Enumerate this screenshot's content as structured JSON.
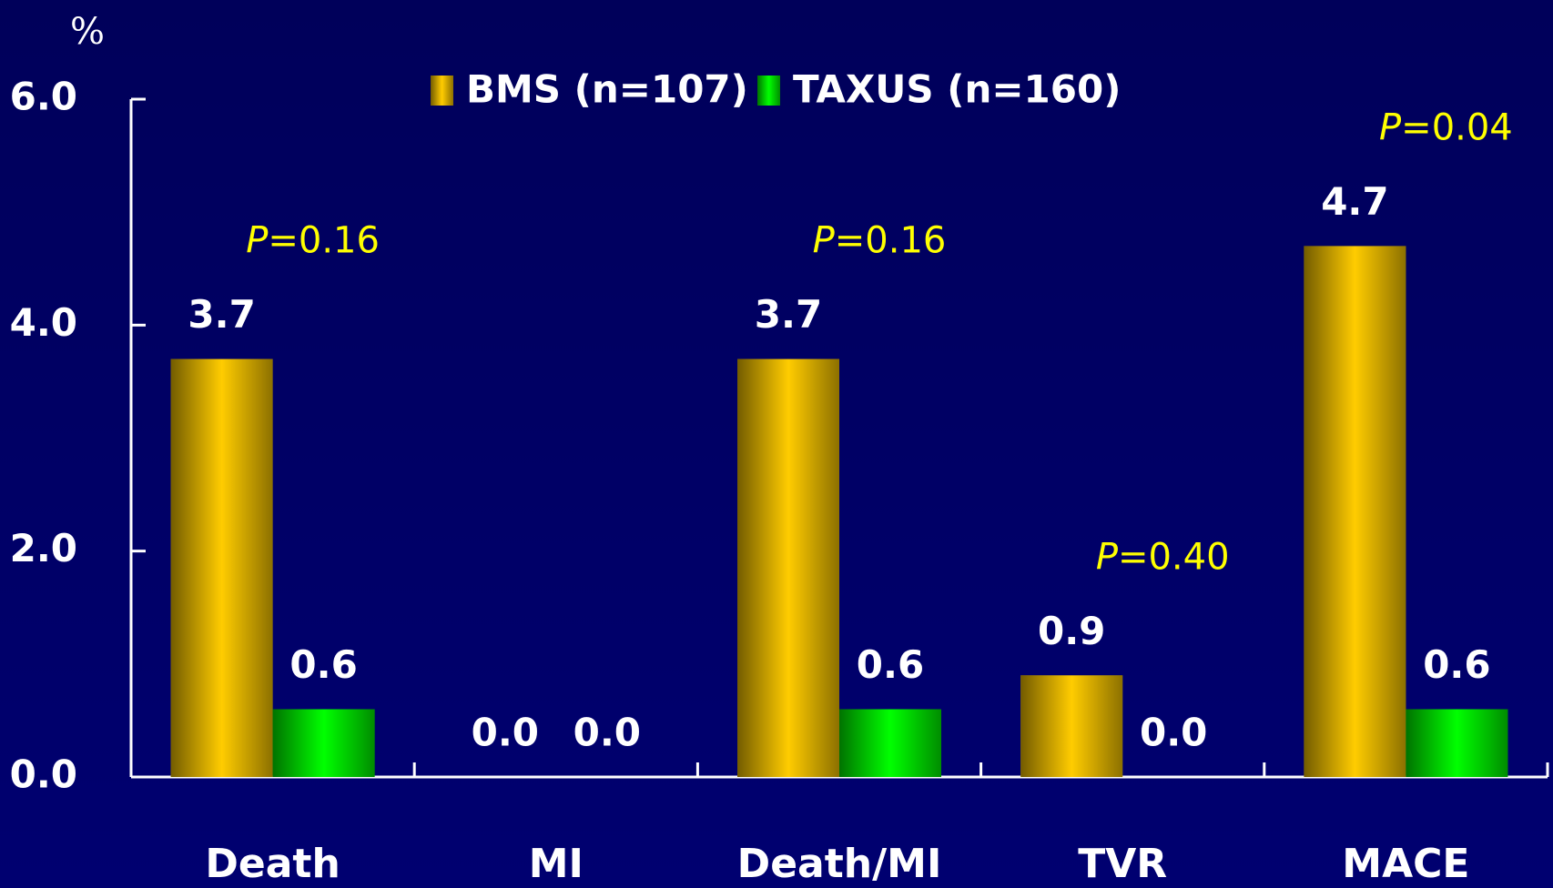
{
  "chart_data": {
    "type": "bar",
    "y_label": "%",
    "categories": [
      "Death",
      "MI",
      "Death/MI",
      "TVR",
      "MACE"
    ],
    "series": [
      {
        "name": "BMS (n=107)",
        "color": "#ffcc00",
        "values": [
          3.7,
          0.0,
          3.7,
          0.9,
          4.7
        ],
        "value_labels": [
          "3.7",
          "0.0",
          "3.7",
          "0.9",
          "4.7"
        ]
      },
      {
        "name": "TAXUS (n=160)",
        "color": "#00ff00",
        "values": [
          0.6,
          0.0,
          0.6,
          0.0,
          0.6
        ],
        "value_labels": [
          "0.6",
          "0.0",
          "0.6",
          "0.0",
          "0.6"
        ]
      }
    ],
    "annotations": [
      "P=0.16",
      null,
      "P=0.16",
      "P=0.40",
      "P=0.04"
    ],
    "ylim": [
      0,
      6
    ],
    "yticks": [
      {
        "value": 0,
        "label": "0.0"
      },
      {
        "value": 2,
        "label": "2.0"
      },
      {
        "value": 4,
        "label": "4.0"
      },
      {
        "value": 6,
        "label": "6.0"
      }
    ],
    "grid": false
  }
}
